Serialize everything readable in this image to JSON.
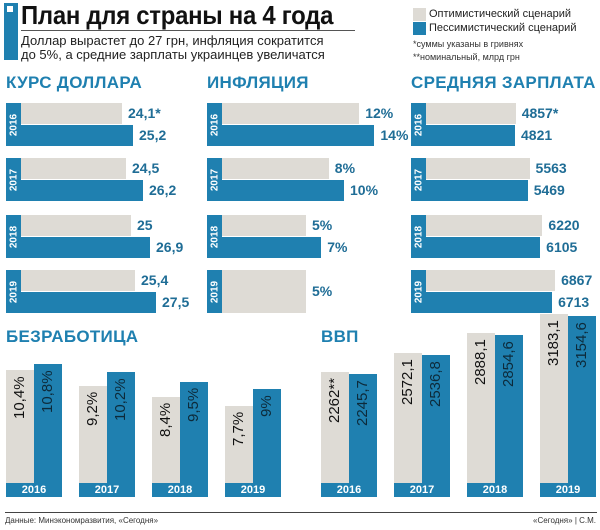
{
  "header": {
    "title": "План для страны на 4 года",
    "subtitle_line1": "Доллар вырастет до 27 грн, инфляция сократится",
    "subtitle_line2": "до 5%, а средние зарплаты украинцев увеличатся"
  },
  "legend": {
    "optimistic": "Оптимистический сценарий",
    "pessimistic": "Пессимистический сценарий",
    "note1": "*суммы указаны в гривнях",
    "note2": "**номинальный, млрд грн"
  },
  "colors": {
    "optimistic": "#dedbd5",
    "pessimistic": "#1f80b0",
    "accent_text": "#1f6d96"
  },
  "footer": {
    "source": "Данные: Минэкономразвития, «Сегодня»",
    "credit": "«Сегодня» | С.М."
  },
  "chart_data": [
    {
      "type": "bar",
      "orientation": "horizontal",
      "title": "КУРС ДОЛЛАРА",
      "categories": [
        "2016",
        "2017",
        "2018",
        "2019"
      ],
      "series": [
        {
          "name": "Оптимистический сценарий",
          "values": [
            24.1,
            24.5,
            25,
            25.4
          ],
          "labels": [
            "24,1*",
            "24,5",
            "25",
            "25,4"
          ]
        },
        {
          "name": "Пессимистический сценарий",
          "values": [
            25.2,
            26.2,
            26.9,
            27.5
          ],
          "labels": [
            "25,2",
            "26,2",
            "26,9",
            "27,5"
          ]
        }
      ]
    },
    {
      "type": "bar",
      "orientation": "horizontal",
      "title": "ИНФЛЯЦИЯ",
      "categories": [
        "2016",
        "2017",
        "2018",
        "2019"
      ],
      "series": [
        {
          "name": "Оптимистический сценарий",
          "values": [
            12,
            8,
            5,
            5
          ],
          "labels": [
            "12%",
            "8%",
            "5%",
            "5%"
          ]
        },
        {
          "name": "Пессимистический сценарий",
          "values": [
            14,
            10,
            7,
            null
          ],
          "labels": [
            "14%",
            "10%",
            "7%",
            ""
          ]
        }
      ]
    },
    {
      "type": "bar",
      "orientation": "horizontal",
      "title": "СРЕДНЯЯ ЗАРПЛАТА",
      "categories": [
        "2016",
        "2017",
        "2018",
        "2019"
      ],
      "series": [
        {
          "name": "Оптимистический сценарий",
          "values": [
            4857,
            5563,
            6220,
            6867
          ],
          "labels": [
            "4857*",
            "5563",
            "6220",
            "6867"
          ]
        },
        {
          "name": "Пессимистический сценарий",
          "values": [
            4821,
            5469,
            6105,
            6713
          ],
          "labels": [
            "4821",
            "5469",
            "6105",
            "6713"
          ]
        }
      ]
    },
    {
      "type": "bar",
      "orientation": "vertical",
      "title": "БЕЗРАБОТИЦА",
      "categories": [
        "2016",
        "2017",
        "2018",
        "2019"
      ],
      "series": [
        {
          "name": "Оптимистический сценарий",
          "values": [
            10.4,
            9.2,
            8.4,
            7.7
          ],
          "labels": [
            "10,4%",
            "9,2%",
            "8,4%",
            "7,7%"
          ]
        },
        {
          "name": "Пессимистический сценарий",
          "values": [
            10.8,
            10.2,
            9.5,
            9
          ],
          "labels": [
            "10,8%",
            "10,2%",
            "9,5%",
            "9%"
          ]
        }
      ]
    },
    {
      "type": "bar",
      "orientation": "vertical",
      "title": "ВВП",
      "categories": [
        "2016",
        "2017",
        "2018",
        "2019"
      ],
      "series": [
        {
          "name": "Оптимистический сценарий",
          "values": [
            2262,
            2572.1,
            2888.1,
            3183.1
          ],
          "labels": [
            "2262**",
            "2572,1",
            "2888,1",
            "3183,1"
          ]
        },
        {
          "name": "Пессимистический сценарий",
          "values": [
            2245.7,
            2536.8,
            2854.6,
            3154.6
          ],
          "labels": [
            "2245,7",
            "2536,8",
            "2854,6",
            "3154,6"
          ]
        }
      ]
    }
  ]
}
